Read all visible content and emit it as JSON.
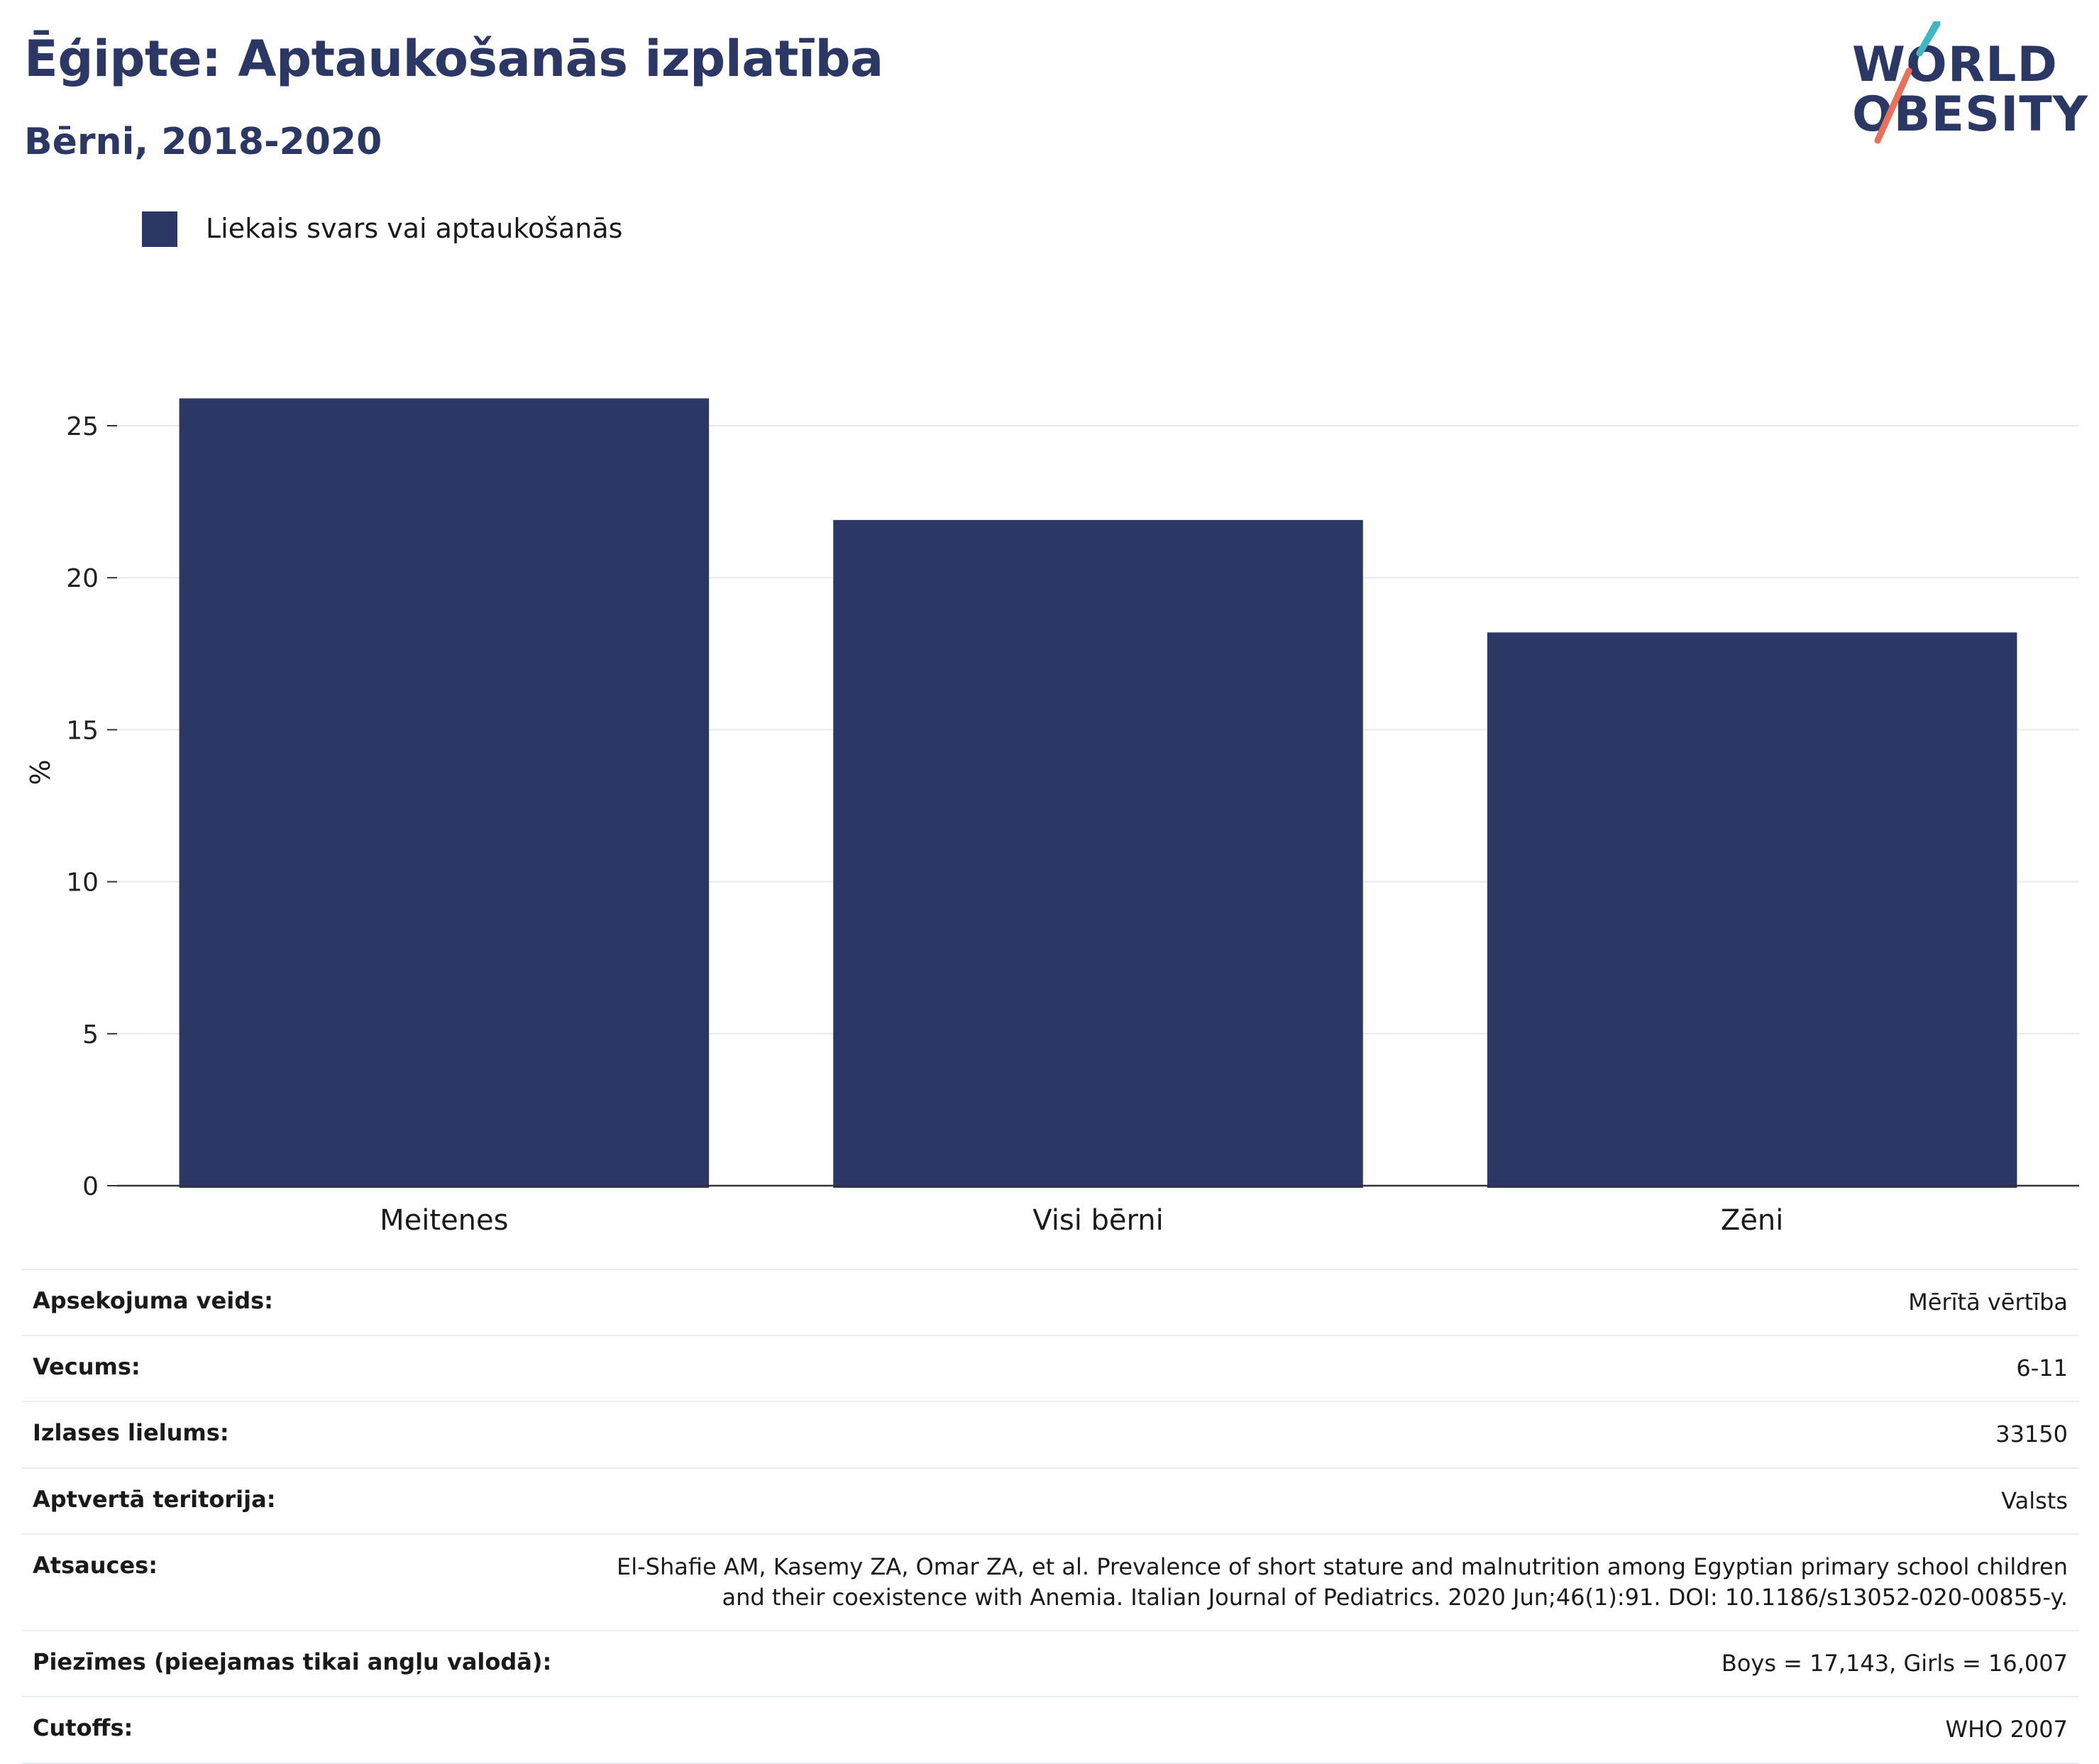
{
  "header": {
    "title": "Ēģipte: Aptaukošanās izplatība",
    "subtitle": "Bērni, 2018-2020"
  },
  "logo": {
    "line1": "WORLD",
    "line2": "OBESITY",
    "icon": "world-obesity-logo",
    "accent_colors": [
      "#3fb8c4",
      "#e8705c"
    ]
  },
  "legend": {
    "label": "Liekais svars vai aptaukošanās",
    "color": "#2b3764"
  },
  "chart_data": {
    "type": "bar",
    "categories": [
      "Meitenes",
      "Visi bērni",
      "Zēni"
    ],
    "series": [
      {
        "name": "Liekais svars vai aptaukošanās",
        "values": [
          25.9,
          21.9,
          18.2
        ],
        "color": "#2b3764"
      }
    ],
    "xlabel": "",
    "ylabel": "%",
    "ylim": [
      0,
      27
    ],
    "yticks": [
      0,
      5,
      10,
      15,
      20,
      25
    ],
    "grid": true,
    "legend_position": "top-left"
  },
  "info": {
    "rows": [
      {
        "label": "Apsekojuma veids:",
        "value": "Mērītā vērtība"
      },
      {
        "label": "Vecums:",
        "value": "6-11"
      },
      {
        "label": "Izlases lielums:",
        "value": "33150"
      },
      {
        "label": "Aptvertā teritorija:",
        "value": "Valsts"
      },
      {
        "label": "Atsauces:",
        "value": "El-Shafie AM, Kasemy ZA, Omar ZA, et al. Prevalence of short stature and malnutrition among Egyptian primary school children and their coexistence with Anemia. Italian Journal of Pediatrics. 2020 Jun;46(1):91. DOI: 10.1186/s13052-020-00855-y."
      },
      {
        "label": "Piezīmes (pieejamas tikai angļu valodā):",
        "value": "Boys = 17,143, Girls = 16,007"
      },
      {
        "label": "Cutoffs:",
        "value": "WHO 2007"
      }
    ]
  }
}
